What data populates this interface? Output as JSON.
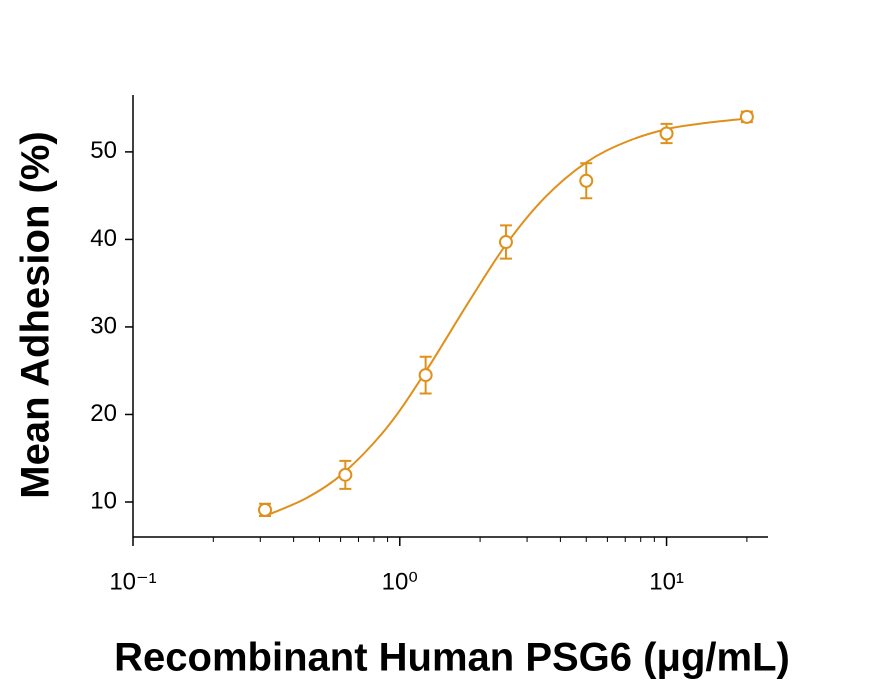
{
  "chart_data": {
    "type": "scatter",
    "x_label": "Recombinant Human PSG6 (μg/mL)",
    "y_label": "Mean Adhesion (%)",
    "log_x": true,
    "color": "#e0901a",
    "xlim": [
      0.1,
      24
    ],
    "xticks": [
      {
        "value": 0.1,
        "label": "10⁻¹"
      },
      {
        "value": 1,
        "label": "10⁰"
      },
      {
        "value": 10,
        "label": "10¹"
      }
    ],
    "xminorticks": [
      0.2,
      0.3,
      0.4,
      0.5,
      0.6,
      0.7,
      0.8,
      0.9,
      2,
      3,
      4,
      5,
      6,
      7,
      8,
      9,
      20
    ],
    "ylim": [
      6,
      56.5
    ],
    "yticks": [
      10,
      20,
      30,
      40,
      50
    ],
    "series": [
      {
        "x": [
          0.3125,
          0.625,
          1.25,
          2.5,
          5,
          10,
          20
        ],
        "values": [
          9.1,
          13.1,
          24.5,
          39.7,
          46.7,
          52.1,
          54.0
        ],
        "errors": [
          0.7,
          1.6,
          2.1,
          1.9,
          2.0,
          1.1,
          0.6
        ]
      }
    ],
    "fit": {
      "x": [
        0.3125,
        0.45,
        0.625,
        0.9,
        1.25,
        1.8,
        2.5,
        3.5,
        5,
        7,
        10,
        14,
        20
      ],
      "values": [
        8.4,
        10.5,
        13.5,
        18.6,
        24.9,
        32.7,
        39.4,
        44.8,
        48.8,
        51.1,
        52.6,
        53.3,
        53.8
      ]
    }
  }
}
